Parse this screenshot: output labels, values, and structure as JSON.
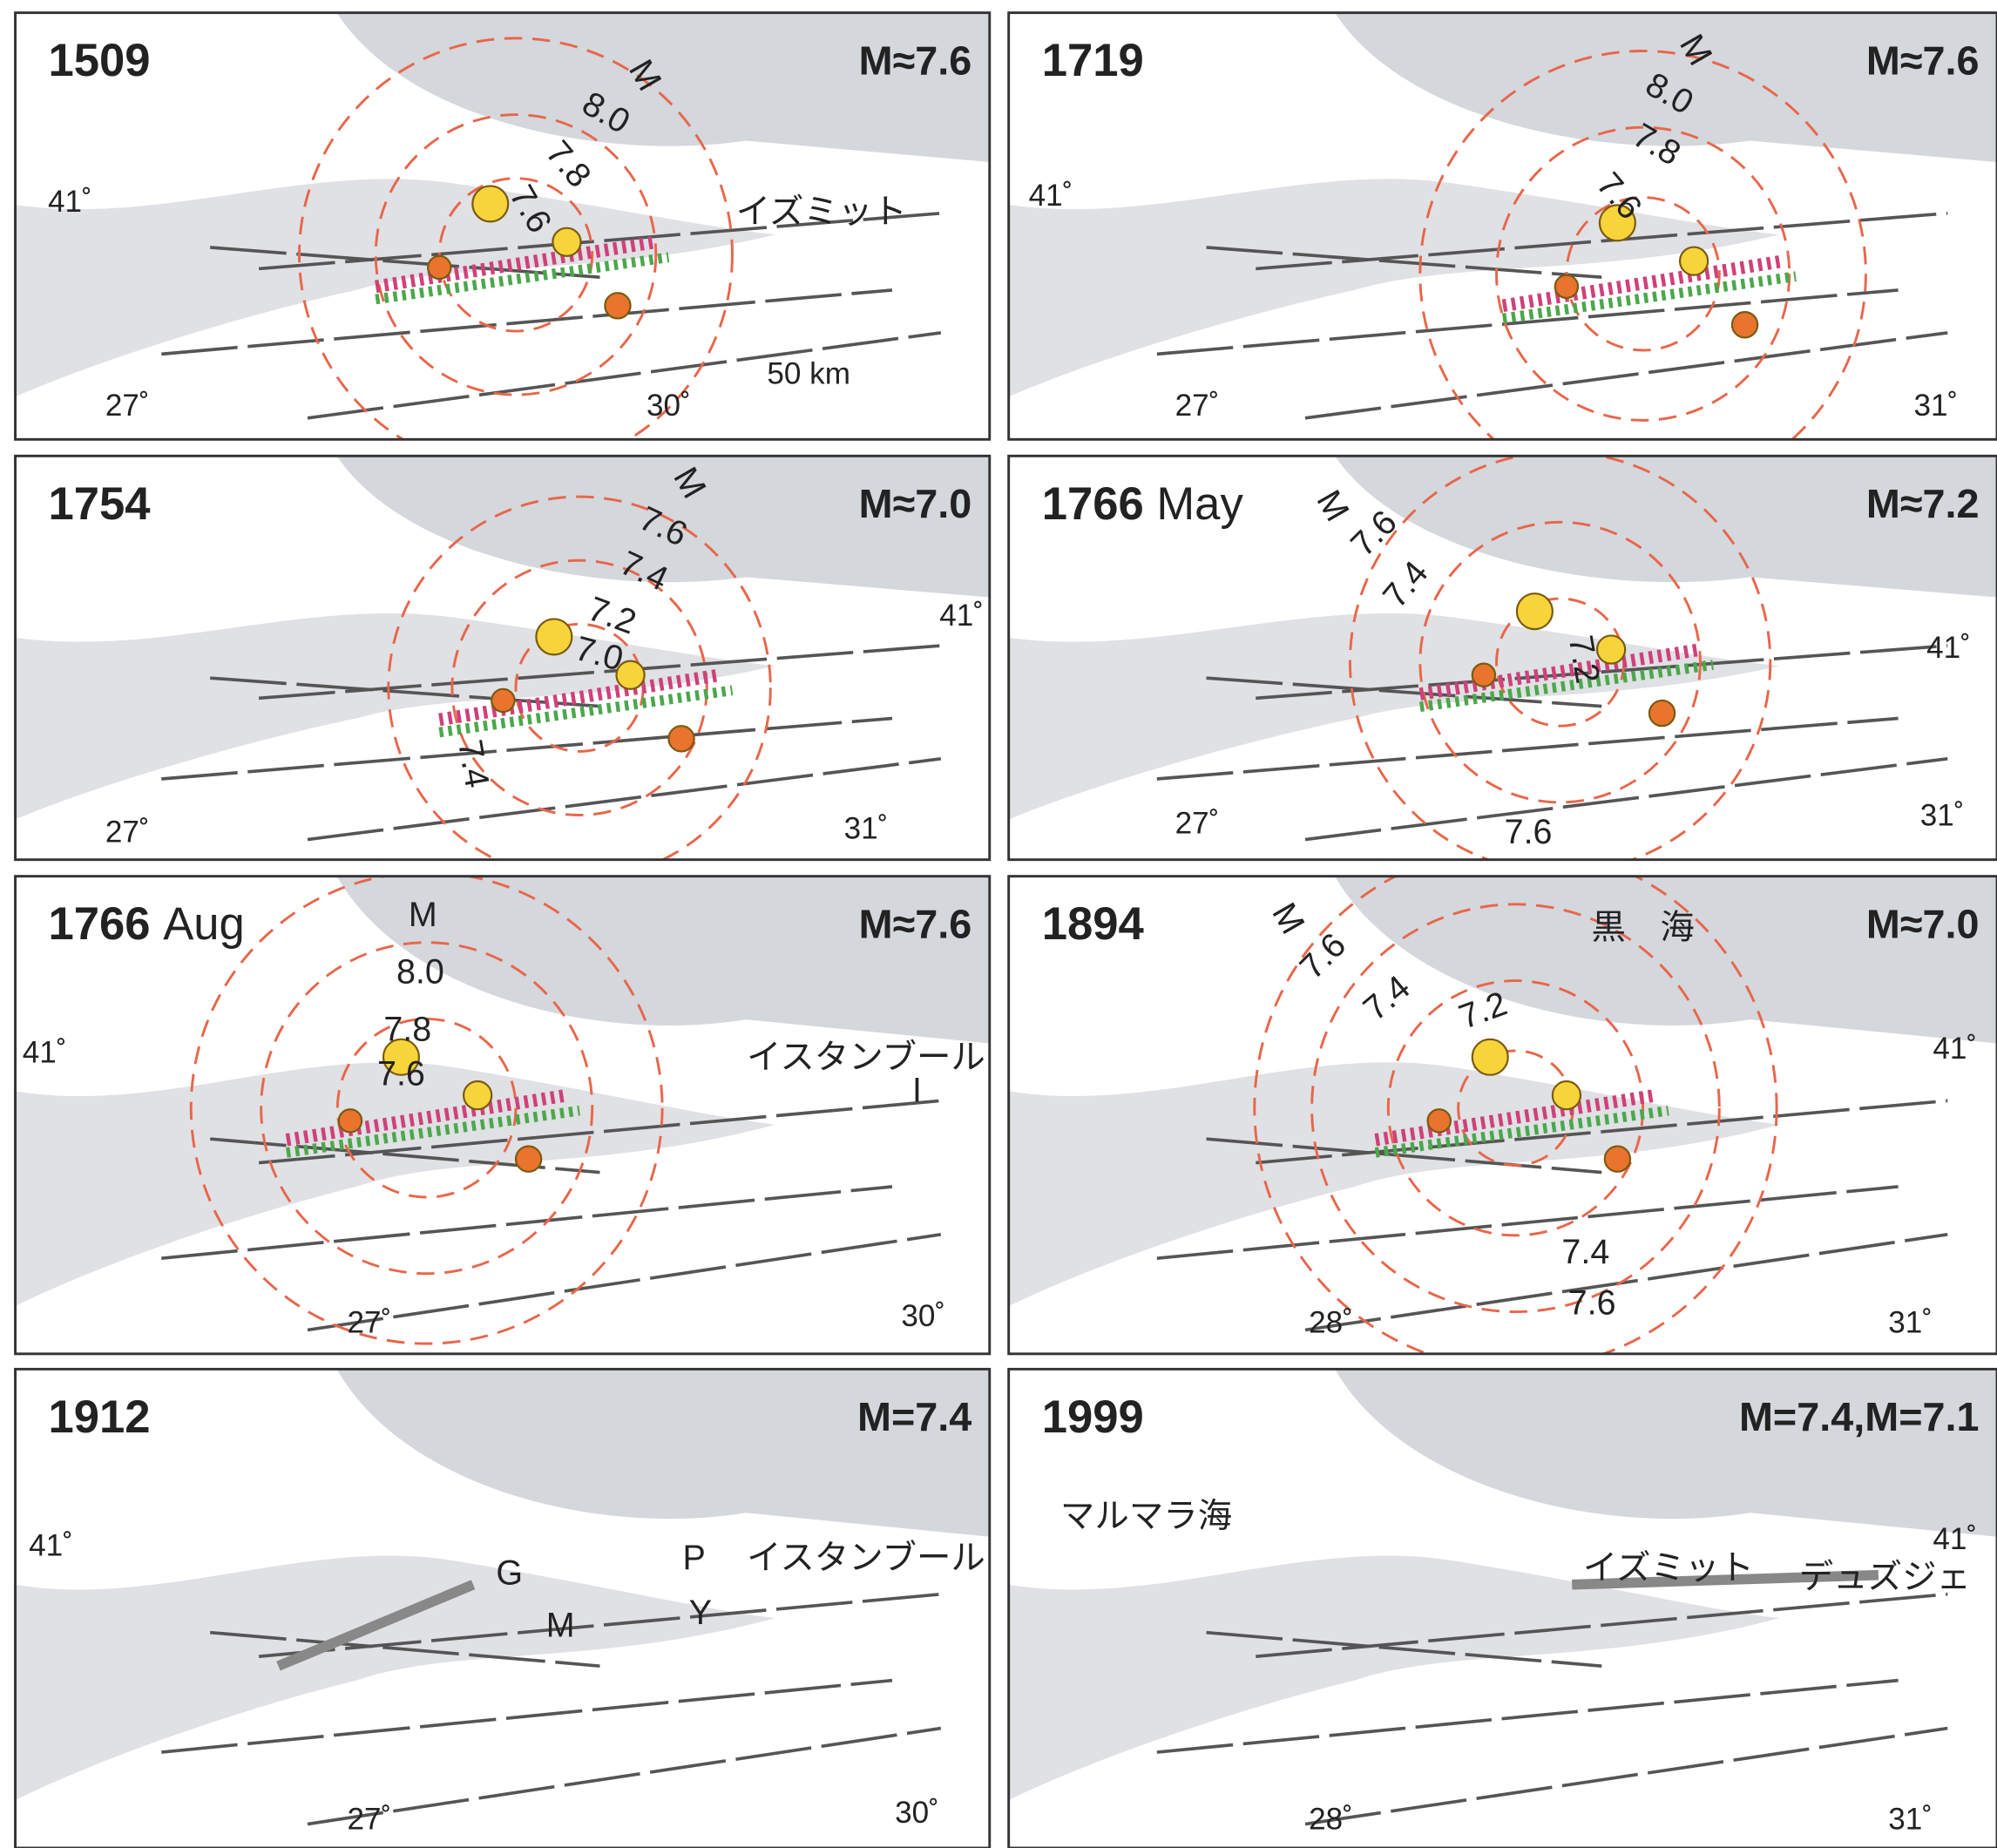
{
  "panels": [
    {
      "year": "1509",
      "magnitude": "M≈7.6",
      "labels": [
        "M",
        "8.0",
        "7.8",
        "7.6",
        "41˚",
        "27˚",
        "30˚",
        "イズミット",
        "50 km"
      ]
    },
    {
      "year": "1719",
      "magnitude": "M≈7.6",
      "labels": [
        "M",
        "8.0",
        "7.8",
        "7.6",
        "41˚",
        "27˚",
        "31˚"
      ]
    },
    {
      "year": "1754",
      "magnitude": "M≈7.0",
      "labels": [
        "M",
        "7.6",
        "7.4",
        "7.2",
        "7.0",
        "7.4",
        "41˚",
        "27˚",
        "31˚"
      ]
    },
    {
      "year": "1766",
      "month": "May",
      "magnitude": "M≈7.2",
      "labels": [
        "M",
        "7.6",
        "7.4",
        "7.2",
        "7.6",
        "41˚",
        "27˚",
        "31˚"
      ]
    },
    {
      "year": "1766",
      "month": "Aug",
      "magnitude": "M≈7.6",
      "labels": [
        "M",
        "8.0",
        "7.8",
        "7.6",
        "41˚",
        "イスタンブール",
        "I",
        "27˚",
        "30˚"
      ]
    },
    {
      "year": "1894",
      "magnitude": "M≈7.0",
      "labels": [
        "黒　海",
        "M",
        "7.6",
        "7.4",
        "7.2",
        "7.4",
        "7.6",
        "41˚",
        "28˚",
        "31˚"
      ]
    },
    {
      "year": "1912",
      "magnitude": "M=7.4",
      "labels": [
        "41˚",
        "G",
        "M",
        "P",
        "Y",
        "イスタンブール",
        "27˚",
        "30˚"
      ]
    },
    {
      "year": "1999",
      "magnitude": "M=7.4,M=7.1",
      "labels": [
        "マルマラ海",
        "41˚",
        "イズミット",
        "デュズジェ",
        "28˚",
        "31˚"
      ]
    }
  ]
}
